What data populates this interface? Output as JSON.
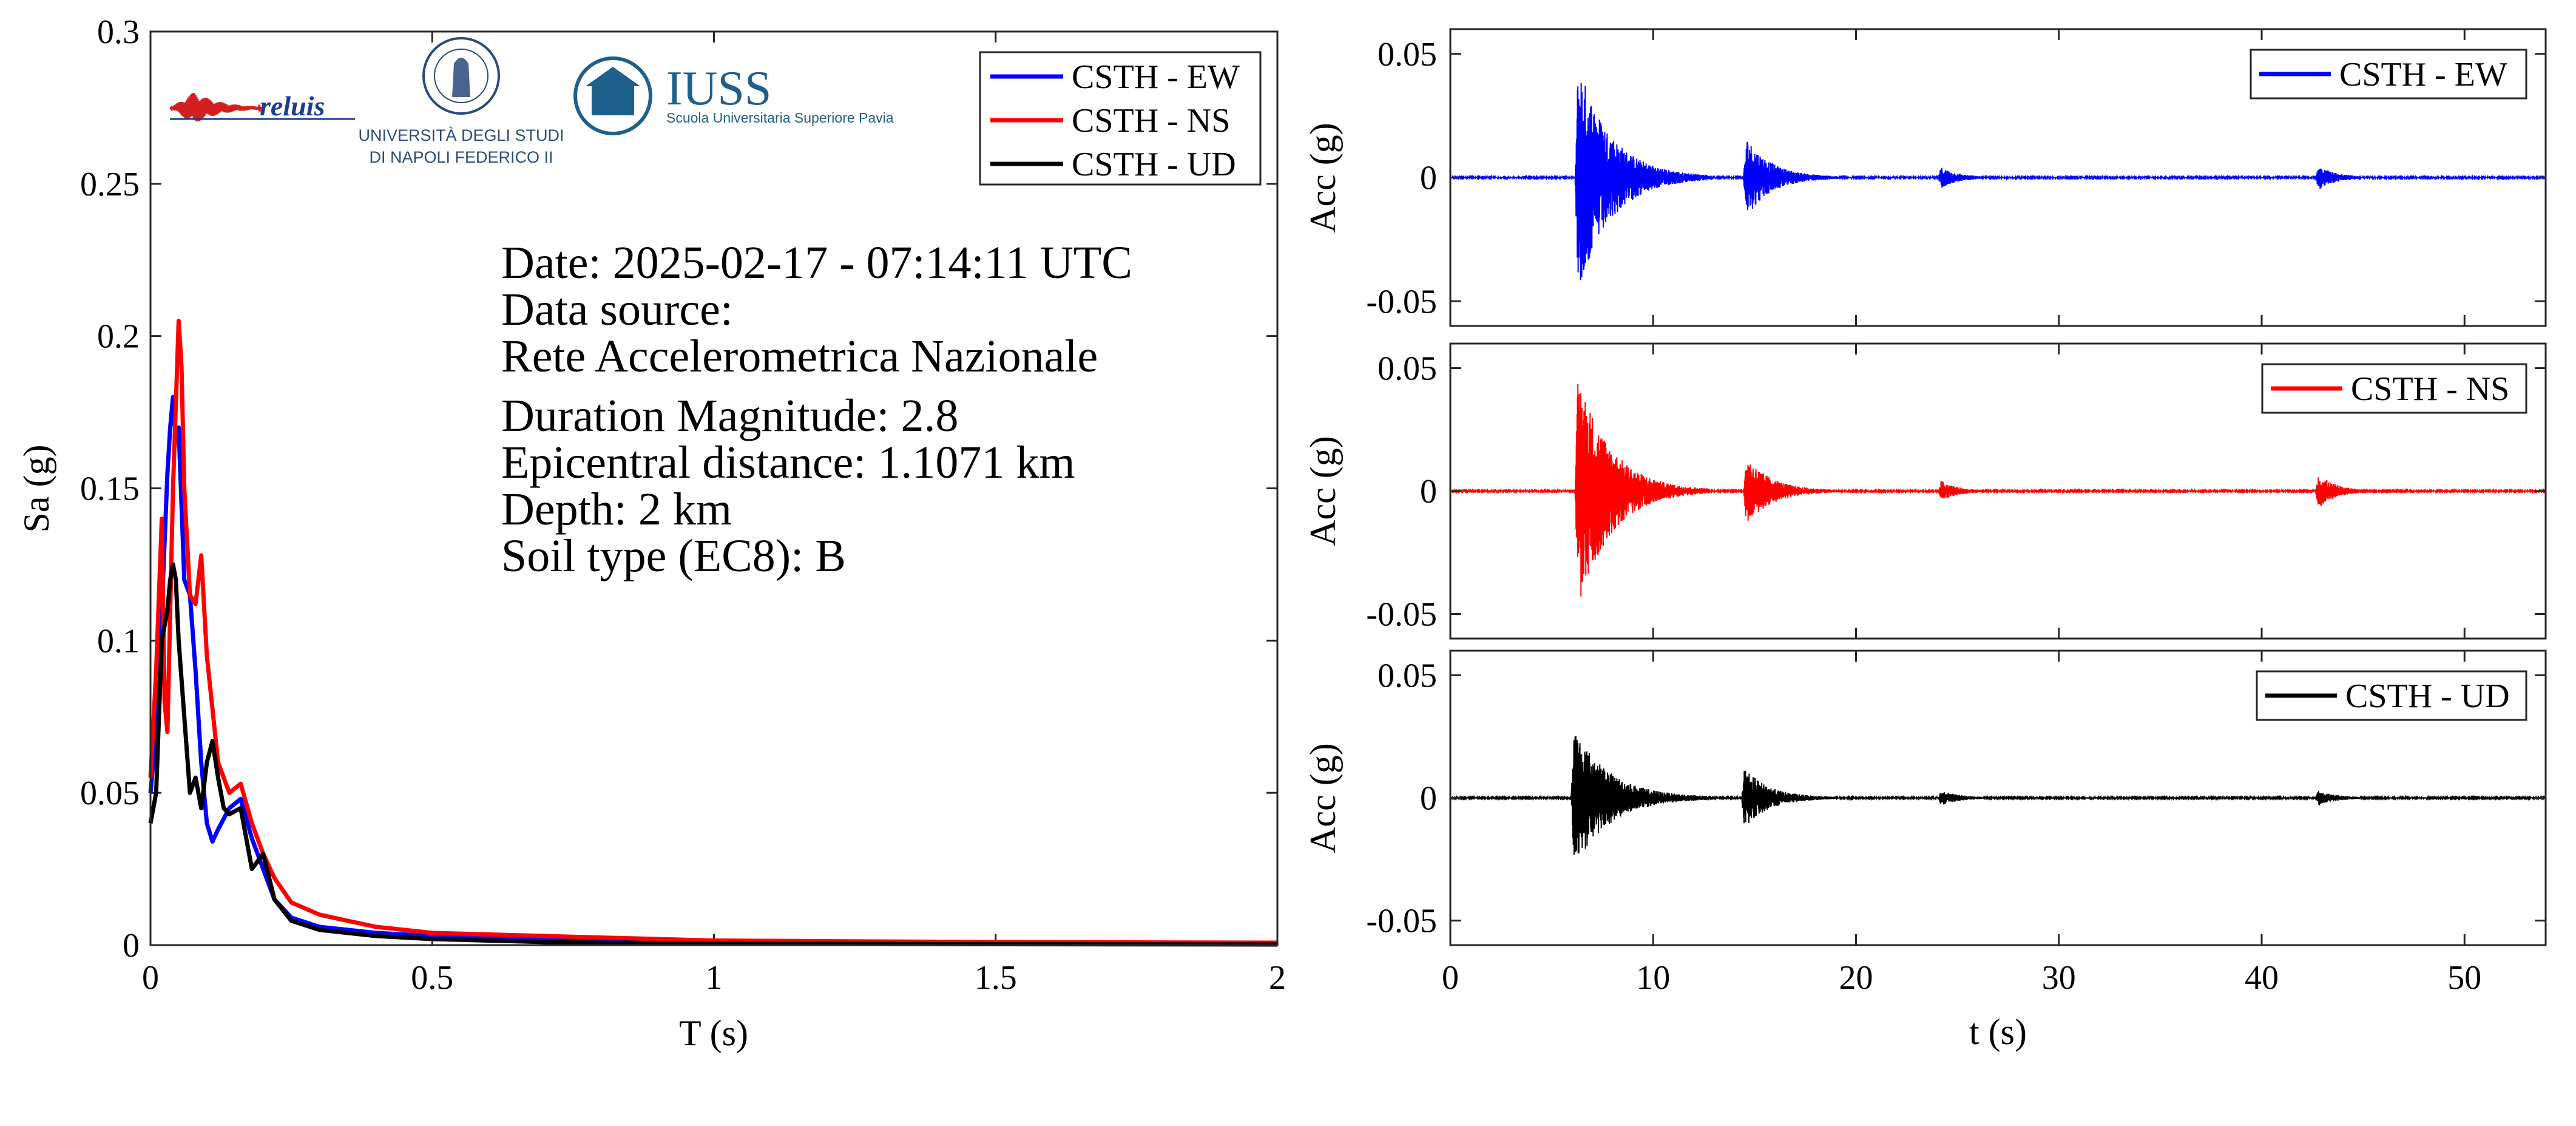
{
  "colors": {
    "ew": "#0000ff",
    "ns": "#ff0000",
    "ud": "#000000"
  },
  "logos": {
    "reluis": "reluis",
    "unina_line1": "UNIVERSITÀ DEGLI STUDI",
    "unina_line2": "DI NAPOLI FEDERICO II",
    "iuss_name": "IUSS",
    "iuss_sub": "Scuola Universitaria Superiore Pavia"
  },
  "info": {
    "date": "Date: 2025-02-17 - 07:14:11 UTC",
    "source_label": "Data source:",
    "source_name": "Rete Accelerometrica Nazionale",
    "magnitude": "Duration Magnitude: 2.8",
    "distance": "Epicentral distance: 1.1071 km",
    "depth": "Depth: 2 km",
    "soil": "Soil type (EC8): B"
  },
  "chart_data": [
    {
      "type": "line",
      "xlabel": "T (s)",
      "ylabel": "Sa (g)",
      "xlim": [
        0,
        2
      ],
      "ylim": [
        0,
        0.3
      ],
      "xticks": [
        0,
        0.5,
        1,
        1.5,
        2
      ],
      "xtick_labels": [
        "0",
        "0.5",
        "1",
        "1.5",
        "2"
      ],
      "yticks": [
        0,
        0.05,
        0.1,
        0.15,
        0.2,
        0.25,
        0.3
      ],
      "ytick_labels": [
        "0",
        "0.05",
        "0.1",
        "0.15",
        "0.2",
        "0.25",
        "0.3"
      ],
      "legend_position": "top-right",
      "series": [
        {
          "name": "CSTH - EW",
          "color": "#0000ff",
          "x": [
            0,
            0.01,
            0.02,
            0.03,
            0.035,
            0.04,
            0.045,
            0.05,
            0.06,
            0.07,
            0.08,
            0.09,
            0.1,
            0.11,
            0.12,
            0.14,
            0.16,
            0.18,
            0.2,
            0.22,
            0.25,
            0.3,
            0.35,
            0.4,
            0.5,
            0.7,
            1.0,
            1.5,
            2.0
          ],
          "y": [
            0.05,
            0.07,
            0.11,
            0.155,
            0.17,
            0.18,
            0.165,
            0.17,
            0.12,
            0.115,
            0.09,
            0.06,
            0.04,
            0.034,
            0.038,
            0.045,
            0.048,
            0.035,
            0.025,
            0.015,
            0.009,
            0.006,
            0.005,
            0.004,
            0.003,
            0.002,
            0.001,
            0.0007,
            0.0005
          ]
        },
        {
          "name": "CSTH - NS",
          "color": "#ff0000",
          "x": [
            0,
            0.01,
            0.02,
            0.025,
            0.03,
            0.035,
            0.04,
            0.05,
            0.055,
            0.06,
            0.07,
            0.08,
            0.09,
            0.1,
            0.12,
            0.14,
            0.16,
            0.18,
            0.2,
            0.22,
            0.25,
            0.3,
            0.35,
            0.4,
            0.5,
            0.7,
            1.0,
            1.5,
            2.0
          ],
          "y": [
            0.055,
            0.09,
            0.14,
            0.08,
            0.07,
            0.11,
            0.15,
            0.205,
            0.19,
            0.15,
            0.115,
            0.112,
            0.128,
            0.095,
            0.06,
            0.05,
            0.053,
            0.04,
            0.03,
            0.022,
            0.014,
            0.01,
            0.008,
            0.006,
            0.004,
            0.003,
            0.0015,
            0.001,
            0.0008
          ]
        },
        {
          "name": "CSTH - UD",
          "color": "#000000",
          "x": [
            0,
            0.01,
            0.02,
            0.03,
            0.035,
            0.04,
            0.045,
            0.05,
            0.06,
            0.07,
            0.08,
            0.09,
            0.1,
            0.11,
            0.12,
            0.13,
            0.14,
            0.16,
            0.18,
            0.2,
            0.22,
            0.25,
            0.3,
            0.4,
            0.5,
            0.7,
            1.0,
            1.5,
            2.0
          ],
          "y": [
            0.04,
            0.05,
            0.1,
            0.11,
            0.12,
            0.125,
            0.12,
            0.1,
            0.075,
            0.05,
            0.055,
            0.045,
            0.06,
            0.067,
            0.055,
            0.045,
            0.043,
            0.045,
            0.025,
            0.03,
            0.015,
            0.008,
            0.005,
            0.003,
            0.002,
            0.001,
            0.0005,
            0.0003,
            0.0002
          ]
        }
      ]
    },
    {
      "type": "line",
      "ylabel": "Acc (g)",
      "xlim": [
        0,
        54
      ],
      "ylim": [
        -0.06,
        0.06
      ],
      "yticks": [
        -0.05,
        0,
        0.05
      ],
      "ytick_labels": [
        "-0.05",
        "0",
        "0.05"
      ],
      "legend_position": "top-right",
      "series": [
        {
          "name": "CSTH - EW",
          "color": "#0000ff",
          "events": [
            {
              "t": 6.3,
              "amp": 0.047,
              "decay": 1.6,
              "dur": 6.5
            },
            {
              "t": 14.6,
              "amp": 0.016,
              "decay": 1.2,
              "dur": 4.5
            },
            {
              "t": 24.2,
              "amp": 0.004,
              "decay": 0.8,
              "dur": 2.0
            },
            {
              "t": 42.8,
              "amp": 0.005,
              "decay": 0.8,
              "dur": 2.0
            }
          ]
        }
      ]
    },
    {
      "type": "line",
      "ylabel": "Acc (g)",
      "xlim": [
        0,
        54
      ],
      "ylim": [
        -0.06,
        0.06
      ],
      "yticks": [
        -0.05,
        0,
        0.05
      ],
      "ytick_labels": [
        "-0.05",
        "0",
        "0.05"
      ],
      "legend_position": "top-right",
      "series": [
        {
          "name": "CSTH - NS",
          "color": "#ff0000",
          "events": [
            {
              "t": 6.3,
              "amp": 0.048,
              "decay": 1.6,
              "dur": 6.5
            },
            {
              "t": 14.6,
              "amp": 0.014,
              "decay": 1.2,
              "dur": 4.5
            },
            {
              "t": 24.2,
              "amp": 0.004,
              "decay": 0.8,
              "dur": 2.0
            },
            {
              "t": 42.8,
              "amp": 0.007,
              "decay": 0.8,
              "dur": 2.0
            }
          ]
        }
      ]
    },
    {
      "type": "line",
      "xlabel": "t (s)",
      "ylabel": "Acc (g)",
      "xlim": [
        0,
        54
      ],
      "ylim": [
        -0.06,
        0.06
      ],
      "xticks": [
        0,
        10,
        20,
        30,
        40,
        50
      ],
      "xtick_labels": [
        "0",
        "10",
        "20",
        "30",
        "40",
        "50"
      ],
      "yticks": [
        -0.05,
        0,
        0.05
      ],
      "ytick_labels": [
        "-0.05",
        "0",
        "0.05"
      ],
      "legend_position": "top-right",
      "series": [
        {
          "name": "CSTH - UD",
          "color": "#000000",
          "events": [
            {
              "t": 6.1,
              "amp": 0.029,
              "decay": 1.7,
              "dur": 6.5
            },
            {
              "t": 14.5,
              "amp": 0.012,
              "decay": 1.2,
              "dur": 4.5
            },
            {
              "t": 24.2,
              "amp": 0.003,
              "decay": 0.8,
              "dur": 2.0
            },
            {
              "t": 42.8,
              "amp": 0.003,
              "decay": 0.8,
              "dur": 2.0
            }
          ]
        }
      ]
    }
  ]
}
